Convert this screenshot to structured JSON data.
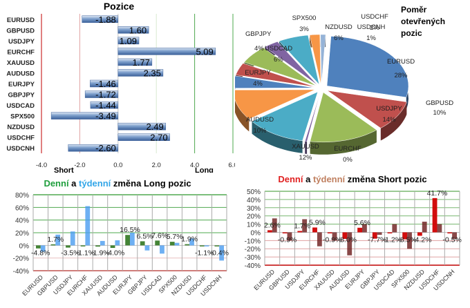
{
  "chart_data": [
    {
      "type": "bar",
      "orientation": "horizontal",
      "title": "Pozice",
      "categories": [
        "EURUSD",
        "GBPUSD",
        "USDJPY",
        "EURCHF",
        "XAUUSD",
        "AUDUSD",
        "EURJPY",
        "GBPJPY",
        "USDCAD",
        "SPX500",
        "NZDUSD",
        "USDCHF",
        "USDCNH"
      ],
      "values": [
        -1.88,
        1.6,
        1.09,
        5.09,
        1.77,
        2.35,
        -1.46,
        -1.72,
        -1.44,
        -3.49,
        2.49,
        2.7,
        -2.6
      ],
      "value_labels": [
        "-1.88",
        "1.60",
        "1.09",
        "5.09",
        "1.77",
        "2.35",
        "-1.46",
        "-1.72",
        "-1.44",
        "-3.49",
        "2.49",
        "2.70",
        "-2.60"
      ],
      "xlim": [
        -4.0,
        6.0
      ],
      "xticks": [
        "-4.0",
        "-2.0",
        "0.0",
        "2.0",
        "4.0",
        "6.0"
      ],
      "xtick_values": [
        -4,
        -2,
        0,
        2,
        4,
        6
      ],
      "annotations": {
        "short": "Short",
        "long": "Long"
      },
      "colors": {
        "bar": "#4f81bd",
        "bar_light": "#dce6f2",
        "short_line": "#c0504d",
        "long_line": "#4ea84e"
      }
    },
    {
      "type": "pie",
      "title": "Poměr otevřených pozic",
      "title_lines": [
        "Poměr",
        "otevřených",
        "pozic"
      ],
      "slices": [
        {
          "label": "EURUSD",
          "value": 28,
          "pct": "28%",
          "color": "#4f81bd"
        },
        {
          "label": "GBPUSD",
          "value": 10,
          "pct": "10%",
          "color": "#c0504d"
        },
        {
          "label": "USDJPY",
          "value": 14,
          "pct": "14%",
          "color": "#9bbb59"
        },
        {
          "label": "EURCHF",
          "value": 0.4,
          "pct": "0%",
          "color": "#8064a2"
        },
        {
          "label": "XAUUSD",
          "value": 12,
          "pct": "12%",
          "color": "#4bacc6"
        },
        {
          "label": "AUDUSD",
          "value": 10,
          "pct": "10%",
          "color": "#f79646"
        },
        {
          "label": "EURJPY",
          "value": 4,
          "pct": "4%",
          "color": "#4f81bd"
        },
        {
          "label": "GBPJPY",
          "value": 4,
          "pct": "4%",
          "color": "#c0504d"
        },
        {
          "label": "USDCAD",
          "value": 6,
          "pct": "6%",
          "color": "#9bbb59"
        },
        {
          "label": "SPX500",
          "value": 3,
          "pct": "3%",
          "color": "#8064a2"
        },
        {
          "label": "NZDUSD",
          "value": 6,
          "pct": "6%",
          "color": "#4bacc6"
        },
        {
          "label": "USDCHF",
          "value": 2,
          "pct": "2%",
          "color": "#f79646"
        },
        {
          "label": "USDCNH",
          "value": 1,
          "pct": "1%",
          "color": "#95b3d7"
        }
      ]
    },
    {
      "type": "bar",
      "title": "Denní a týdenní změna Long pozic",
      "title_parts": [
        {
          "text": "Denní",
          "color": "#1e9e3c"
        },
        {
          "text": " a ",
          "color": "#000000"
        },
        {
          "text": "týdenní",
          "color": "#33a6e8"
        },
        {
          "text": " změna Long pozic",
          "color": "#000000"
        }
      ],
      "categories": [
        "EURUSD",
        "GBPUSD",
        "USDJPY",
        "EURCHF",
        "XAUUSD",
        "AUDUSD",
        "EURJPY",
        "GBPJPY",
        "USDCAD",
        "SPX500",
        "NZDUSD",
        "USDCHF",
        "USDCNH"
      ],
      "series": [
        {
          "name": "Denní",
          "color": "#3a7d2a",
          "values": [
            -4.8,
            1.7,
            -3.5,
            -1.1,
            -1.9,
            -4.0,
            16.5,
            6.5,
            7.6,
            5.7,
            1.9,
            -1.1,
            -0.4
          ]
        },
        {
          "name": "Týdenní",
          "color": "#4a9cf0",
          "values": [
            -10,
            17,
            22,
            62,
            7,
            8,
            20,
            -8,
            -13,
            4,
            11,
            -1,
            -24
          ]
        }
      ],
      "data_labels": [
        "-4.8%",
        "1.7%",
        "-3.5%",
        "-1.1%",
        "-1.9%",
        "-4.0%",
        "16.5%",
        "6.5%",
        "7.6%",
        "5.7%",
        "1.9%",
        "-1.1%",
        "-0.4%"
      ],
      "ylim": [
        -40,
        80
      ],
      "yticks": [
        "80%",
        "60%",
        "40%",
        "20%",
        "0%",
        "-20%",
        "-40%"
      ],
      "ytick_values": [
        80,
        60,
        40,
        20,
        0,
        -20,
        -40
      ],
      "grid": true
    },
    {
      "type": "bar",
      "title": "Denní a týdenní změna Short pozic",
      "title_parts": [
        {
          "text": "Denní",
          "color": "#e02020"
        },
        {
          "text": " a ",
          "color": "#000000"
        },
        {
          "text": "týdenní",
          "color": "#c08060"
        },
        {
          "text": " změna Short pozic",
          "color": "#000000"
        }
      ],
      "categories": [
        "EURUSD",
        "GBPUSD",
        "USDJPY",
        "EURCHF",
        "XAUUSD",
        "AUDUSD",
        "EURJPY",
        "GBPJPY",
        "USDCAD",
        "SPX500",
        "NZDUSD",
        "USDCHF",
        "USDCNH"
      ],
      "series": [
        {
          "name": "Denní",
          "color": "#d00000",
          "values": [
            2.6,
            -0.9,
            1.7,
            5.9,
            -0.9,
            -8.0,
            5.6,
            -7.7,
            -1.2,
            -8.5,
            -4.2,
            41.7,
            -0.5
          ]
        },
        {
          "name": "Týdenní",
          "color": "#6b1a1a",
          "values": [
            17,
            -10,
            16,
            -17,
            -10,
            -28,
            10,
            -3,
            10,
            -20,
            13,
            10,
            -8
          ]
        }
      ],
      "data_labels": [
        "2.6%",
        "-0.9%",
        "1.7%",
        "5.9%",
        "-0.9%",
        "-8.0%",
        "5.6%",
        "-7.7%",
        "-1.2%",
        "-8.5%",
        "-4.2%",
        "41.7%",
        "-0.5%"
      ],
      "ylim": [
        -40,
        50
      ],
      "yticks": [
        "50%",
        "40%",
        "30%",
        "20%",
        "10%",
        "0%",
        "-10%",
        "-20%",
        "-30%",
        "-40%"
      ],
      "ytick_values": [
        50,
        40,
        30,
        20,
        10,
        0,
        -10,
        -20,
        -30,
        -40
      ],
      "grid": true
    }
  ]
}
